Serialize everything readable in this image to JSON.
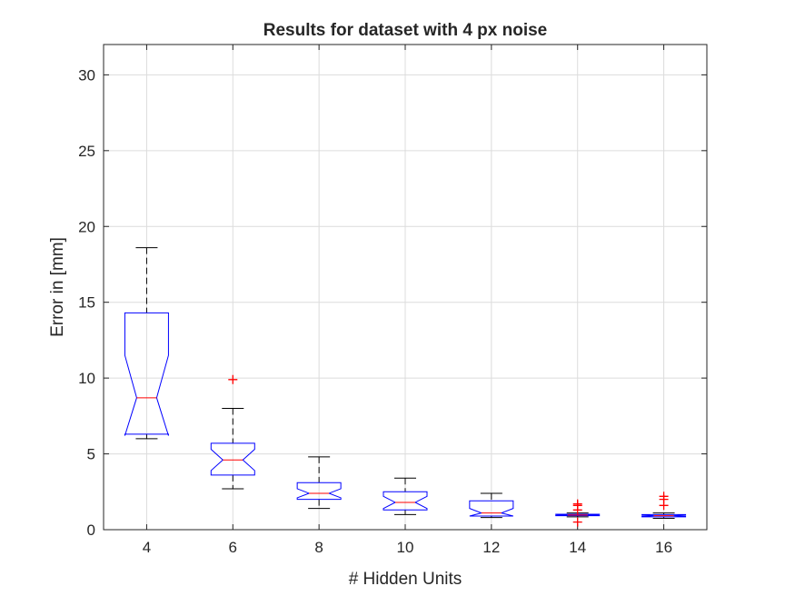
{
  "chart_data": {
    "type": "box",
    "title": "Results for dataset with 4 px noise",
    "xlabel": "# Hidden Units",
    "ylabel": "Error in [mm]",
    "ylim": [
      0,
      32
    ],
    "yticks": [
      0,
      5,
      10,
      15,
      20,
      25,
      30
    ],
    "grid": true,
    "notched": true,
    "colors": {
      "box": "#0000ff",
      "median": "#ff0000",
      "whisker": "#000000",
      "outlier": "#ff0000",
      "grid": "#dcdcdc",
      "axis": "#262626"
    },
    "categories": [
      "4",
      "6",
      "8",
      "10",
      "12",
      "14",
      "16"
    ],
    "boxes": [
      {
        "category": "4",
        "whisker_low": 6.0,
        "q1": 6.3,
        "median": 8.7,
        "q3": 14.3,
        "whisker_high": 18.6,
        "notch_low": 6.2,
        "notch_high": 11.5,
        "outliers": []
      },
      {
        "category": "6",
        "whisker_low": 2.7,
        "q1": 3.6,
        "median": 4.6,
        "q3": 5.7,
        "whisker_high": 8.0,
        "notch_low": 3.9,
        "notch_high": 5.3,
        "outliers": [
          9.9
        ]
      },
      {
        "category": "8",
        "whisker_low": 1.4,
        "q1": 2.0,
        "median": 2.4,
        "q3": 3.1,
        "whisker_high": 4.8,
        "notch_low": 2.1,
        "notch_high": 2.7,
        "outliers": []
      },
      {
        "category": "10",
        "whisker_low": 1.0,
        "q1": 1.3,
        "median": 1.8,
        "q3": 2.5,
        "whisker_high": 3.4,
        "notch_low": 1.4,
        "notch_high": 2.2,
        "outliers": []
      },
      {
        "category": "12",
        "whisker_low": 0.8,
        "q1": 0.9,
        "median": 1.1,
        "q3": 1.9,
        "whisker_high": 2.4,
        "notch_low": 0.9,
        "notch_high": 1.4,
        "outliers": []
      },
      {
        "category": "14",
        "whisker_low": 0.85,
        "q1": 0.92,
        "median": 0.97,
        "q3": 1.02,
        "whisker_high": 1.1,
        "notch_low": 0.94,
        "notch_high": 1.0,
        "outliers": [
          1.3,
          1.6,
          1.7,
          0.5
        ]
      },
      {
        "category": "16",
        "whisker_low": 0.75,
        "q1": 0.85,
        "median": 0.92,
        "q3": 1.0,
        "whisker_high": 1.1,
        "notch_low": 0.88,
        "notch_high": 0.96,
        "outliers": [
          1.6,
          2.0,
          2.2
        ]
      }
    ]
  }
}
